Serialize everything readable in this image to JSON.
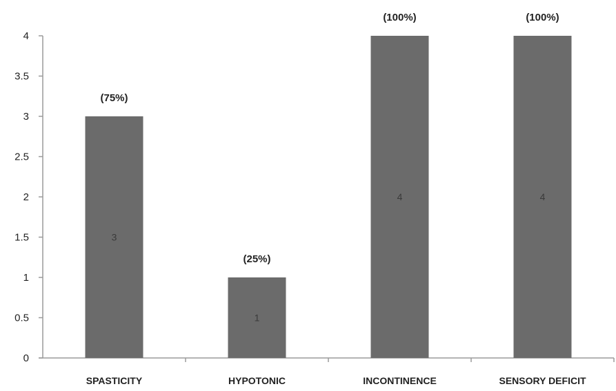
{
  "chart_data": {
    "type": "bar",
    "categories": [
      "SPASTICITY",
      "HYPOTONIC",
      "INCONTINENCE",
      "SENSORY DEFICIT"
    ],
    "values": [
      3,
      1,
      4,
      4
    ],
    "data_labels": [
      "3",
      "1",
      "4",
      "4"
    ],
    "percent_labels": [
      "(75%)",
      "(25%)",
      "(100%)",
      "(100%)"
    ],
    "ylim": [
      0,
      4
    ],
    "yticks": [
      "0",
      "0.5",
      "1",
      "1.5",
      "2",
      "2.5",
      "3",
      "3.5",
      "4"
    ],
    "grid": false,
    "legend": "none",
    "bar_color": "#6b6b6b",
    "axis_color": "#9a9a9a"
  }
}
